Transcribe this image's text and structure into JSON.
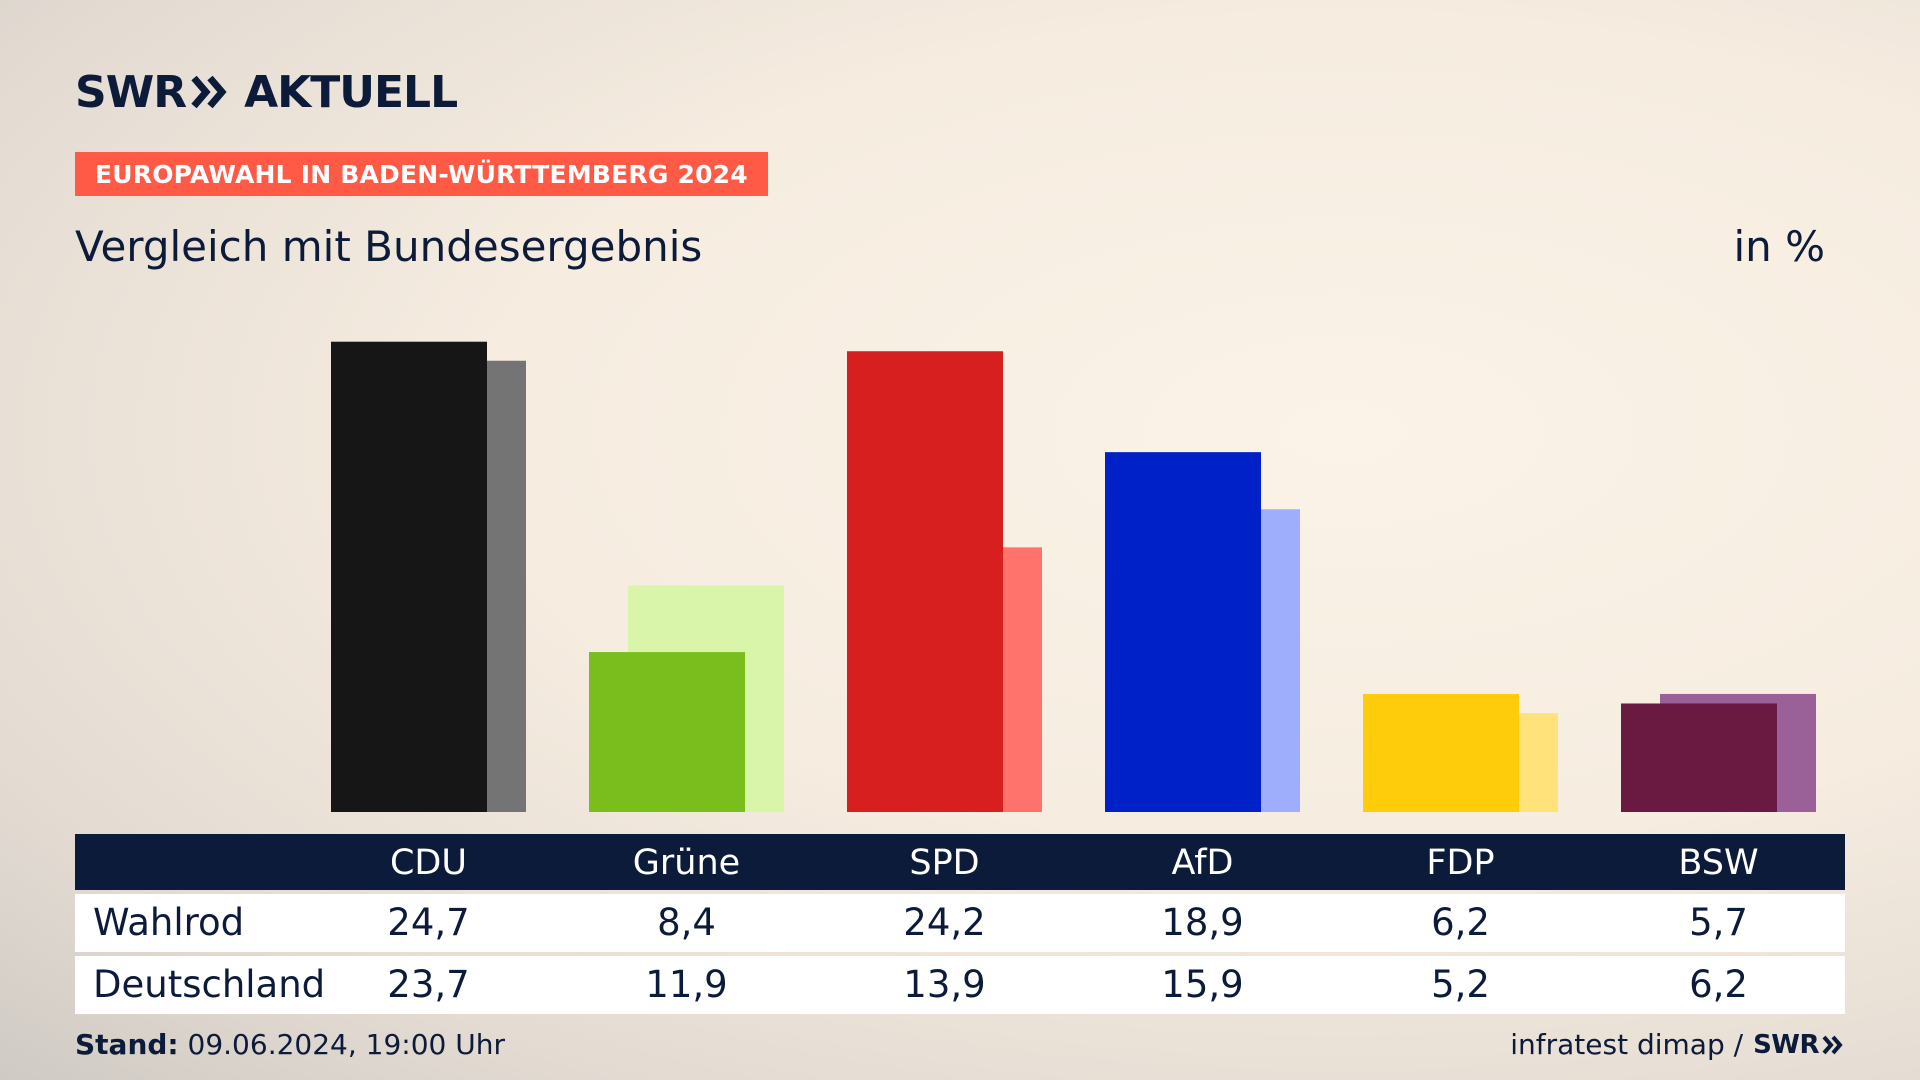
{
  "brand": {
    "name": "SWR",
    "section": "AKTUELL",
    "footer_brand": "SWR"
  },
  "banner": "EUROPAWAHL IN BADEN-WÜRTTEMBERG 2024",
  "subtitle": "Vergleich mit Bundesergebnis",
  "unit": "in %",
  "table": {
    "row_labels": [
      "Wahlrod",
      "Deutschland"
    ]
  },
  "footer": {
    "stand_label": "Stand:",
    "stand_value": "09.06.2024, 19:00 Uhr",
    "source": "infratest dimap /"
  },
  "chart_data": {
    "type": "bar",
    "categories": [
      "CDU",
      "Grüne",
      "SPD",
      "AfD",
      "FDP",
      "BSW"
    ],
    "series": [
      {
        "name": "Wahlrod",
        "values": [
          24.7,
          8.4,
          24.2,
          18.9,
          6.2,
          5.7
        ]
      },
      {
        "name": "Deutschland",
        "values": [
          23.7,
          11.9,
          13.9,
          15.9,
          5.2,
          6.2
        ]
      }
    ],
    "value_labels": [
      [
        "24,7",
        "8,4",
        "24,2",
        "18,9",
        "6,2",
        "5,7"
      ],
      [
        "23,7",
        "11,9",
        "13,9",
        "15,9",
        "5,2",
        "6,2"
      ]
    ],
    "colors": {
      "primary": [
        "#161616",
        "#79be1c",
        "#d71f1f",
        "#0020c8",
        "#ffcc0b",
        "#6a1a40"
      ],
      "secondary": [
        "#747474",
        "#d8f5aa",
        "#ff736c",
        "#9faefc",
        "#ffe37a",
        "#9a6098"
      ]
    },
    "ylim": [
      0,
      25
    ]
  }
}
